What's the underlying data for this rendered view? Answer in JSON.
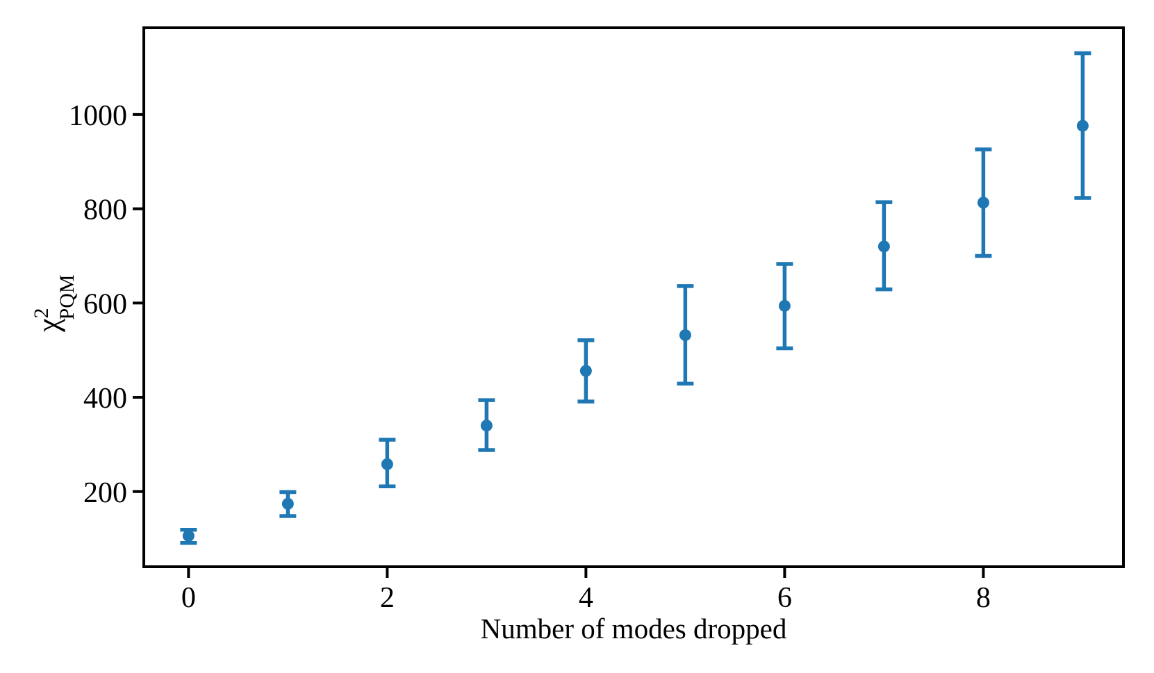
{
  "chart_data": {
    "type": "scatter",
    "title": "",
    "xlabel": "Number of modes dropped",
    "ylabel": "χ²_PQM",
    "ylabel_parts": {
      "base": "χ",
      "sup": "2",
      "sub": "PQM"
    },
    "x": [
      0,
      1,
      2,
      3,
      4,
      5,
      6,
      7,
      8,
      9
    ],
    "y": [
      106,
      174,
      258,
      340,
      456,
      532,
      594,
      720,
      813,
      976
    ],
    "yerr_plus": [
      13,
      25,
      52,
      54,
      65,
      104,
      89,
      94,
      113,
      154
    ],
    "yerr_minus": [
      15,
      26,
      47,
      52,
      65,
      103,
      90,
      91,
      113,
      153
    ],
    "xlim": [
      -0.45,
      9.41
    ],
    "ylim": [
      40.5,
      1184
    ],
    "xticks": [
      0,
      2,
      4,
      6,
      8
    ],
    "yticks": [
      200,
      400,
      600,
      800,
      1000
    ],
    "grid": false,
    "legend_shown": false,
    "marker": "circle-with-errorbars",
    "marker_color": "#1f77b4",
    "axis_color": "#000000",
    "background_color": "#ffffff"
  }
}
